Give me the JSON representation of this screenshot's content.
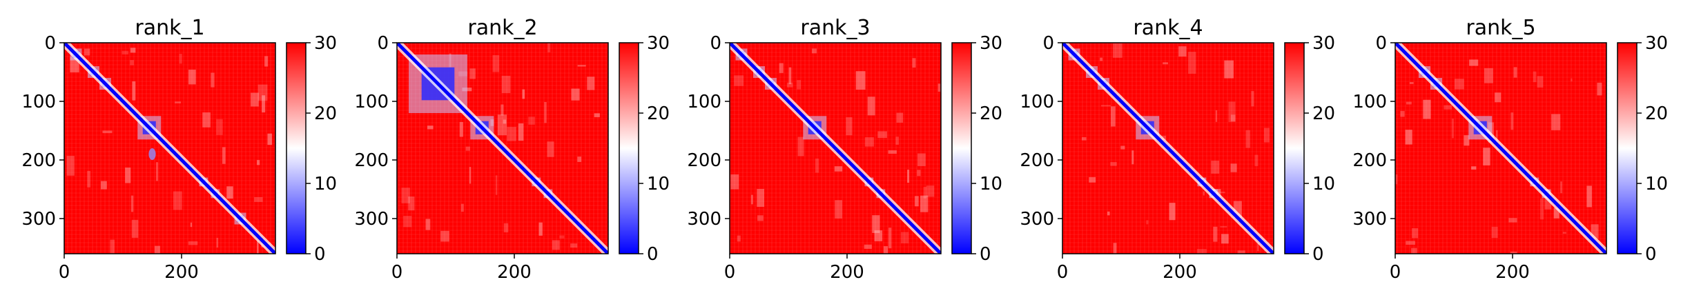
{
  "chart_data": [
    {
      "type": "heatmap",
      "title": "rank_1",
      "x_range": [
        0,
        360
      ],
      "y_range": [
        0,
        360
      ],
      "x_ticks": [
        "0",
        "200"
      ],
      "y_ticks": [
        "0",
        "100",
        "200",
        "300"
      ],
      "colorbar": {
        "range": [
          0,
          30
        ],
        "ticks": [
          "0",
          "10",
          "20",
          "30"
        ],
        "colormap": [
          "#0000ff",
          "#ffffff",
          "#ff0000"
        ]
      },
      "diagonal_blocks": [
        [
          10,
          30
        ],
        [
          40,
          60
        ],
        [
          60,
          80
        ],
        [
          125,
          165
        ],
        [
          230,
          245
        ],
        [
          250,
          265
        ],
        [
          290,
          310
        ]
      ],
      "off_diagonal_spots": [
        [
          150,
          190,
          10
        ]
      ]
    },
    {
      "type": "heatmap",
      "title": "rank_2",
      "x_range": [
        0,
        360
      ],
      "y_range": [
        0,
        360
      ],
      "x_ticks": [
        "0",
        "200"
      ],
      "y_ticks": [
        "0",
        "100",
        "200",
        "300"
      ],
      "colorbar": {
        "range": [
          0,
          30
        ],
        "ticks": [
          "0",
          "10",
          "20",
          "30"
        ],
        "colormap": [
          "#0000ff",
          "#ffffff",
          "#ff0000"
        ]
      },
      "diagonal_blocks": [
        [
          20,
          120
        ],
        [
          125,
          165
        ],
        [
          230,
          245
        ],
        [
          250,
          265
        ]
      ],
      "off_diagonal_spots": []
    },
    {
      "type": "heatmap",
      "title": "rank_3",
      "x_range": [
        0,
        360
      ],
      "y_range": [
        0,
        360
      ],
      "x_ticks": [
        "0",
        "200"
      ],
      "y_ticks": [
        "0",
        "100",
        "200",
        "300"
      ],
      "colorbar": {
        "range": [
          0,
          30
        ],
        "ticks": [
          "0",
          "10",
          "20",
          "30"
        ],
        "colormap": [
          "#0000ff",
          "#ffffff",
          "#ff0000"
        ]
      },
      "diagonal_blocks": [
        [
          10,
          30
        ],
        [
          40,
          60
        ],
        [
          60,
          80
        ],
        [
          125,
          165
        ],
        [
          230,
          245
        ],
        [
          250,
          265
        ]
      ],
      "off_diagonal_spots": []
    },
    {
      "type": "heatmap",
      "title": "rank_4",
      "x_range": [
        0,
        360
      ],
      "y_range": [
        0,
        360
      ],
      "x_ticks": [
        "0",
        "200"
      ],
      "y_ticks": [
        "0",
        "100",
        "200",
        "300"
      ],
      "colorbar": {
        "range": [
          0,
          30
        ],
        "ticks": [
          "0",
          "10",
          "20",
          "30"
        ],
        "colormap": [
          "#0000ff",
          "#ffffff",
          "#ff0000"
        ]
      },
      "diagonal_blocks": [
        [
          10,
          30
        ],
        [
          40,
          60
        ],
        [
          60,
          80
        ],
        [
          125,
          165
        ],
        [
          230,
          245
        ],
        [
          250,
          265
        ]
      ],
      "off_diagonal_spots": []
    },
    {
      "type": "heatmap",
      "title": "rank_5",
      "x_range": [
        0,
        360
      ],
      "y_range": [
        0,
        360
      ],
      "x_ticks": [
        "0",
        "200"
      ],
      "y_ticks": [
        "0",
        "100",
        "200",
        "300"
      ],
      "colorbar": {
        "range": [
          0,
          30
        ],
        "ticks": [
          "0",
          "10",
          "20",
          "30"
        ],
        "colormap": [
          "#0000ff",
          "#ffffff",
          "#ff0000"
        ]
      },
      "diagonal_blocks": [
        [
          40,
          60
        ],
        [
          60,
          80
        ],
        [
          125,
          165
        ],
        [
          230,
          245
        ],
        [
          250,
          265
        ]
      ],
      "off_diagonal_spots": []
    }
  ]
}
